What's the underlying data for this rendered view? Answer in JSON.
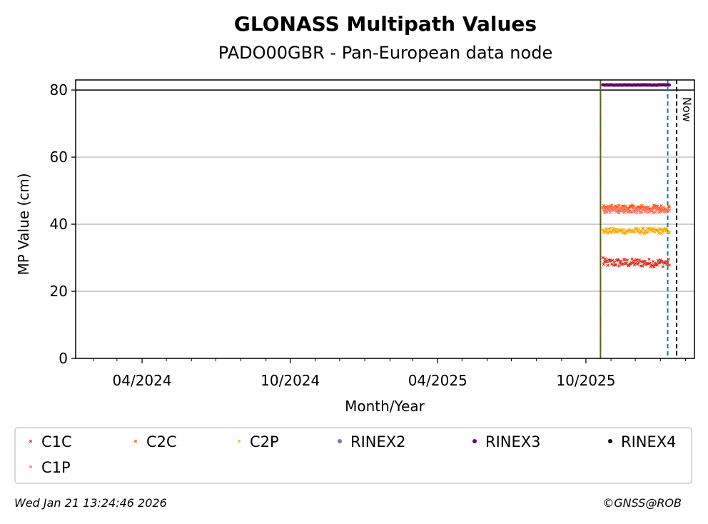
{
  "chart_data": {
    "type": "scatter",
    "title": "GLONASS Multipath Values",
    "subtitle": "PADO00GBR - Pan-European data node",
    "xlabel": "Month/Year",
    "ylabel": "MP Value (cm)",
    "x_type": "date",
    "xlim": [
      "2024-01-10",
      "2026-02-12"
    ],
    "ylim": [
      0,
      83
    ],
    "yticks": [
      0,
      20,
      40,
      60,
      80
    ],
    "xticks": [
      {
        "date": "2024-04-01",
        "label": "04/2024"
      },
      {
        "date": "2024-10-01",
        "label": "10/2024"
      },
      {
        "date": "2025-04-01",
        "label": "04/2025"
      },
      {
        "date": "2025-10-01",
        "label": "10/2025"
      }
    ],
    "minor_xticks": [
      "2024-02-01",
      "2024-03-01",
      "2024-05-01",
      "2024-06-01",
      "2024-07-01",
      "2024-08-01",
      "2024-09-01",
      "2024-11-01",
      "2024-12-01",
      "2025-01-01",
      "2025-02-01",
      "2025-03-01",
      "2025-05-01",
      "2025-06-01",
      "2025-07-01",
      "2025-08-01",
      "2025-09-01",
      "2025-11-01",
      "2025-12-01",
      "2026-01-01",
      "2026-02-01"
    ],
    "grid": {
      "y": true,
      "x": false
    },
    "reference_lines": {
      "horizontal_80": {
        "y": 80,
        "color": "#000000",
        "style": "solid"
      },
      "green_line": {
        "date": "2025-10-19",
        "color": "#008000",
        "style": "solid"
      },
      "red_line": {
        "date": "2025-10-19",
        "color": "#e03020",
        "style": "dotted"
      },
      "blue_line": {
        "date": "2026-01-10",
        "color": "#1f6fb4",
        "style": "dashed"
      },
      "now_line": {
        "date": "2026-01-21",
        "color": "#000000",
        "style": "dashed",
        "label": "Now"
      }
    },
    "series": [
      {
        "name": "C1C",
        "color": "#e03020",
        "marker": "x",
        "x_start": "2025-10-22",
        "x_end": "2026-01-12",
        "y_mean": 28.5,
        "y_jitter": 1.2,
        "y_start": 30.0
      },
      {
        "name": "C2C",
        "color": "#ff5500",
        "marker": "x",
        "x_start": "2025-10-22",
        "x_end": "2026-01-12",
        "y_mean": 44.8,
        "y_jitter": 0.9
      },
      {
        "name": "C2P",
        "color": "#ffaa00",
        "marker": "x",
        "x_start": "2025-10-22",
        "x_end": "2026-01-12",
        "y_mean": 38.0,
        "y_jitter": 0.8
      },
      {
        "name": "RINEX2",
        "color": "#7777bb",
        "marker": "o",
        "points": []
      },
      {
        "name": "RINEX3",
        "color": "#660066",
        "marker": "o",
        "x_start": "2025-10-22",
        "x_end": "2026-01-12",
        "y_mean": 81.5,
        "y_jitter": 0.05
      },
      {
        "name": "RINEX4",
        "color": "#220022",
        "marker": "o",
        "points": []
      },
      {
        "name": "C1P",
        "color": "#ff7766",
        "marker": "x",
        "x_start": "2025-10-22",
        "x_end": "2026-01-12",
        "y_mean": 44.2,
        "y_jitter": 0.8
      }
    ],
    "legend": {
      "placement": "below",
      "columns": 6
    }
  },
  "footer": {
    "timestamp": "Wed Jan 21 13:24:46 2026",
    "copyright": "©GNSS@ROB"
  }
}
